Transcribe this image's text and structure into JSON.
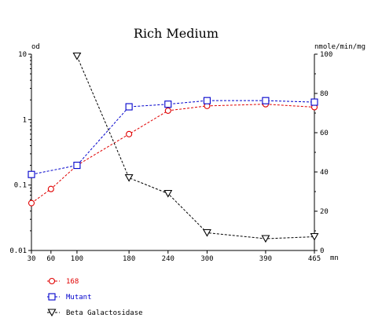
{
  "chart_data": {
    "type": "line",
    "title": "Rich Medium",
    "x": {
      "label": "mn",
      "ticks": [
        30,
        60,
        100,
        180,
        240,
        300,
        390,
        465
      ],
      "range": [
        30,
        465
      ]
    },
    "y_left": {
      "label": "od",
      "scale": "log",
      "range": [
        0.01,
        10
      ],
      "ticks": [
        0.01,
        0.1,
        1,
        10
      ],
      "tick_labels": [
        "0.01",
        "0.1",
        "1",
        "10"
      ]
    },
    "y_right": {
      "label": "nmole/min/mg",
      "scale": "linear",
      "range": [
        0,
        100
      ],
      "ticks": [
        0,
        20,
        40,
        60,
        80,
        100
      ]
    },
    "grid": false,
    "legend_position": "bottom-left",
    "series": [
      {
        "name": "168",
        "axis": "left",
        "color": "#e00000",
        "marker": "circle",
        "x": [
          30,
          60,
          100,
          180,
          240,
          300,
          390,
          465
        ],
        "values": [
          0.053,
          0.087,
          0.2,
          0.6,
          1.37,
          1.62,
          1.72,
          1.55
        ]
      },
      {
        "name": "Mutant",
        "axis": "left",
        "color": "#0000cc",
        "marker": "square",
        "x": [
          30,
          100,
          180,
          240,
          300,
          390,
          465
        ],
        "values": [
          0.145,
          0.2,
          1.57,
          1.72,
          1.95,
          1.95,
          1.85
        ]
      },
      {
        "name": "Beta Galactosidase",
        "axis": "right",
        "color": "#000000",
        "marker": "triangle-down",
        "x": [
          100,
          180,
          240,
          300,
          390,
          465
        ],
        "values": [
          99,
          37,
          29,
          9,
          6,
          7
        ]
      }
    ]
  }
}
